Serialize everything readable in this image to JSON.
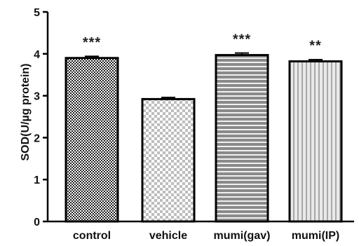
{
  "chart_data": {
    "type": "bar",
    "categories": [
      "control",
      "vehicle",
      "mumi(gav)",
      "mumi(IP)"
    ],
    "values": [
      3.9,
      2.92,
      3.97,
      3.82
    ],
    "errors": [
      0.04,
      0.04,
      0.05,
      0.04
    ],
    "annotations": [
      "***",
      "",
      "***",
      "**"
    ],
    "ylabel": "SOD(U/µg protein)",
    "ylim": [
      0,
      5
    ],
    "yticks": [
      "0",
      "1",
      "2",
      "3",
      "4",
      "5"
    ],
    "grid": false,
    "legend": "none",
    "bar_patterns": [
      "checker-dense",
      "checker-light",
      "horizontal-stripes",
      "vertical-stripes"
    ]
  }
}
